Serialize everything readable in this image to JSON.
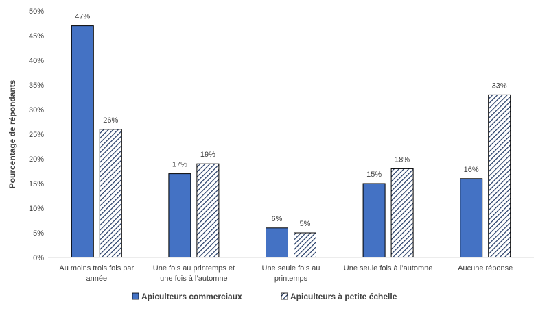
{
  "chart_data": {
    "type": "bar",
    "title": "",
    "xlabel": "",
    "ylabel": "Pourcentage de répondants",
    "ylim": [
      0,
      50
    ],
    "yticks": [
      0,
      5,
      10,
      15,
      20,
      25,
      30,
      35,
      40,
      45,
      50
    ],
    "y_tick_suffix": "%",
    "grid": false,
    "legend_position": "bottom",
    "categories": [
      [
        "Au moins trois fois par",
        "année"
      ],
      [
        "Une fois au printemps et",
        "une fois à l’automne"
      ],
      [
        "Une seule fois au",
        "printemps"
      ],
      [
        "Une seule fois à l’automne"
      ],
      [
        "Aucune réponse"
      ]
    ],
    "series": [
      {
        "name": "Apiculteurs commerciaux",
        "values": [
          47,
          17,
          6,
          15,
          16
        ],
        "labels": [
          "47%",
          "17%",
          "6%",
          "15%",
          "16%"
        ],
        "color": "#4472c4",
        "pattern": "solid"
      },
      {
        "name": "Apiculteurs à petite échelle",
        "values": [
          26,
          19,
          5,
          18,
          33
        ],
        "labels": [
          "26%",
          "19%",
          "5%",
          "18%",
          "33%"
        ],
        "color": "#203864",
        "pattern": "diagonal-hatch"
      }
    ]
  }
}
